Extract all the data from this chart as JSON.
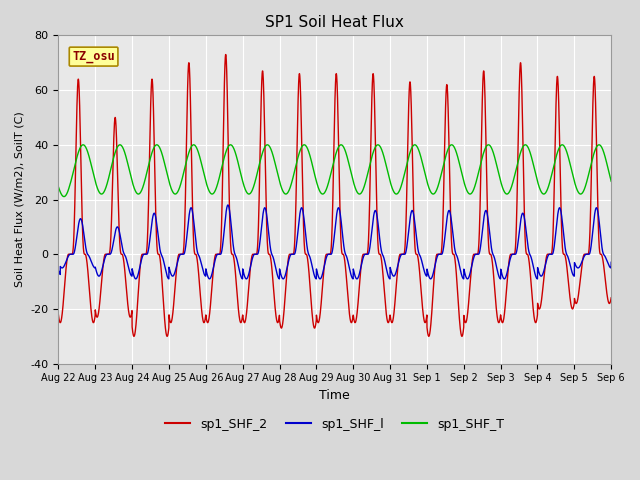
{
  "title": "SP1 Soil Heat Flux",
  "ylabel": "Soil Heat Flux (W/m2), SoilT (C)",
  "xlabel": "Time",
  "ylim": [
    -40,
    80
  ],
  "total_days": 15,
  "tick_labels": [
    "Aug 22",
    "Aug 23",
    "Aug 24",
    "Aug 25",
    "Aug 26",
    "Aug 27",
    "Aug 28",
    "Aug 29",
    "Aug 30",
    "Aug 31",
    "Sep 1",
    "Sep 2",
    "Sep 3",
    "Sep 4",
    "Sep 5",
    "Sep 6"
  ],
  "color_red": "#cc0000",
  "color_blue": "#0000cc",
  "color_green": "#00bb00",
  "bg_color": "#d8d8d8",
  "plot_bg": "#e8e8e8",
  "legend_labels": [
    "sp1_SHF_2",
    "sp1_SHF_l",
    "sp1_SHF_T"
  ],
  "tz_label": "TZ_osu",
  "tz_bg": "#ffff99",
  "tz_border": "#aa8800",
  "yticks": [
    -40,
    -20,
    0,
    20,
    40,
    60,
    80
  ],
  "grid_color": "#ffffff",
  "title_fontsize": 11,
  "label_fontsize": 8,
  "tick_fontsize": 7,
  "legend_fontsize": 9
}
